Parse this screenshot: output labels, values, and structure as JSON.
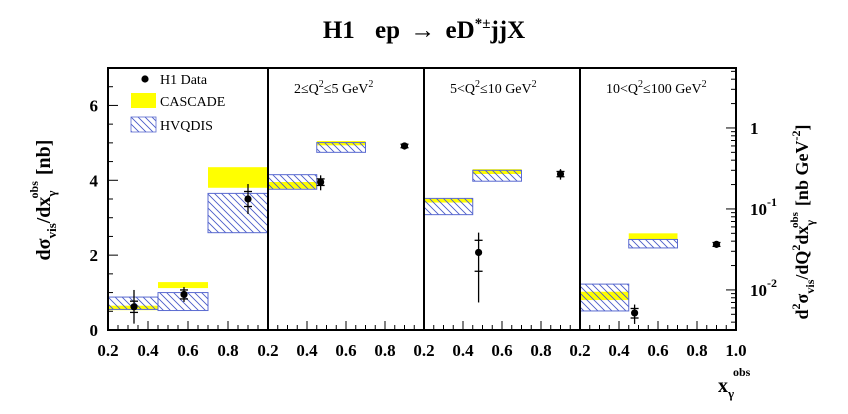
{
  "chart_data": {
    "type": "scatter",
    "title": {
      "experiment": "H1",
      "process_prefix": "ep",
      "arrow": "→",
      "process_final_lead": "eD",
      "process_final_sup": "*±",
      "process_final_tail": "jjX"
    },
    "xlabel": {
      "main": "x",
      "sub": "γ",
      "sup": "obs"
    },
    "ylabel_left": {
      "d1": "d",
      "sigma": "σ",
      "sub_vis": "vis",
      "slash_d": "/dx",
      "sub_gamma": "γ",
      "sup_obs": "obs",
      "unit": "[nb]"
    },
    "ylabel_right": {
      "d2": "d",
      "sup2a": "2",
      "sigma": "σ",
      "sub_vis": "vis",
      "slash_d": "/dQ",
      "sup2b": "2",
      "dx": "dx",
      "sub_gamma": "γ",
      "sup_obs": "obs",
      "unit": "[nb GeV",
      "unit_exp": "-2",
      "unit_close": "]"
    },
    "x_ticks": [
      "0.2",
      "0.4",
      "0.6",
      "0.8"
    ],
    "x_ticks_last": [
      "0.2",
      "0.4",
      "0.6",
      "0.8",
      "1.0"
    ],
    "left_y_ticks": [
      "0",
      "2",
      "4",
      "6"
    ],
    "right_y_ticks": [
      {
        "base": "1",
        "exp": ""
      },
      {
        "base": "10",
        "exp": "-1"
      },
      {
        "base": "10",
        "exp": "-2"
      }
    ],
    "legend": {
      "placement": "top-left",
      "entries": [
        {
          "label": "H1 Data",
          "kind": "marker"
        },
        {
          "label": "CASCADE",
          "kind": "cascade"
        },
        {
          "label": "HVQDIS",
          "kind": "hvqdis"
        }
      ]
    },
    "colors": {
      "cascade": "#ffff00",
      "hvqdis_hatch": "#4a5cc8",
      "hvqdis_edge": "#5a6ad0",
      "data": "#000000"
    },
    "x_range": [
      0.2,
      1.0
    ],
    "bin_edges": [
      0.2,
      0.45,
      0.7,
      1.0
    ],
    "panels": [
      {
        "name": "integrated",
        "label": null,
        "scale": "linear",
        "ylim": [
          0,
          7
        ],
        "data": [
          {
            "x": 0.33,
            "y": 0.62,
            "stat": 0.15,
            "tot": 0.45
          },
          {
            "x": 0.58,
            "y": 0.95,
            "stat": 0.12,
            "tot": 0.2
          },
          {
            "x": 0.9,
            "y": 3.5,
            "stat": 0.2,
            "tot": 0.4
          }
        ],
        "cascade": [
          {
            "lo": 0.53,
            "hi": 0.65
          },
          {
            "lo": 1.12,
            "hi": 1.28
          },
          {
            "lo": 3.8,
            "hi": 4.35
          }
        ],
        "hvqdis": [
          {
            "lo": 0.55,
            "hi": 0.88
          },
          {
            "lo": 0.52,
            "hi": 1.0
          },
          {
            "lo": 2.6,
            "hi": 3.65
          }
        ]
      },
      {
        "name": "q2-2-5",
        "label": {
          "lead": "2≤Q",
          "sup1": "2",
          "mid": "≤5 GeV",
          "sup2": "2"
        },
        "scale": "log",
        "ylim": [
          0.0032,
          5.5
        ],
        "data": [
          {
            "x": 0.47,
            "y": 0.215,
            "stat": 0.02,
            "tot": 0.045
          },
          {
            "x": 0.9,
            "y": 0.6,
            "stat": 0.03,
            "tot": 0.06
          }
        ],
        "cascade": [
          {
            "lo": 0.178,
            "hi": 0.215
          },
          {
            "lo": 0.61,
            "hi": 0.69
          }
        ],
        "hvqdis": [
          {
            "lo": 0.175,
            "hi": 0.265
          },
          {
            "lo": 0.5,
            "hi": 0.66
          }
        ]
      },
      {
        "name": "q2-5-10",
        "label": {
          "lead": "5<Q",
          "sup1": "2",
          "mid": "≤10 GeV",
          "sup2": "2"
        },
        "scale": "log",
        "ylim": [
          0.0032,
          5.5
        ],
        "data": [
          {
            "x": 0.48,
            "y": 0.029,
            "stat": 0.012,
            "tot": 0.022
          },
          {
            "x": 0.9,
            "y": 0.27,
            "stat": 0.02,
            "tot": 0.04
          }
        ],
        "cascade": [
          {
            "lo": 0.12,
            "hi": 0.134
          },
          {
            "lo": 0.27,
            "hi": 0.31
          }
        ],
        "hvqdis": [
          {
            "lo": 0.085,
            "hi": 0.135
          },
          {
            "lo": 0.22,
            "hi": 0.3
          }
        ]
      },
      {
        "name": "q2-10-100",
        "label": {
          "lead": "10<Q",
          "sup1": "2",
          "mid": "≤100 GeV",
          "sup2": "2"
        },
        "scale": "log",
        "ylim": [
          0.0032,
          5.5
        ],
        "data": [
          {
            "x": 0.48,
            "y": 0.0052,
            "stat": 0.0007,
            "tot": 0.0014
          },
          {
            "x": 0.9,
            "y": 0.0365,
            "stat": 0.002,
            "tot": 0.003
          }
        ],
        "cascade": [
          {
            "lo": 0.0075,
            "hi": 0.0095
          },
          {
            "lo": 0.042,
            "hi": 0.05
          }
        ],
        "hvqdis": [
          {
            "lo": 0.0055,
            "hi": 0.0118
          },
          {
            "lo": 0.033,
            "hi": 0.042
          }
        ]
      }
    ]
  }
}
